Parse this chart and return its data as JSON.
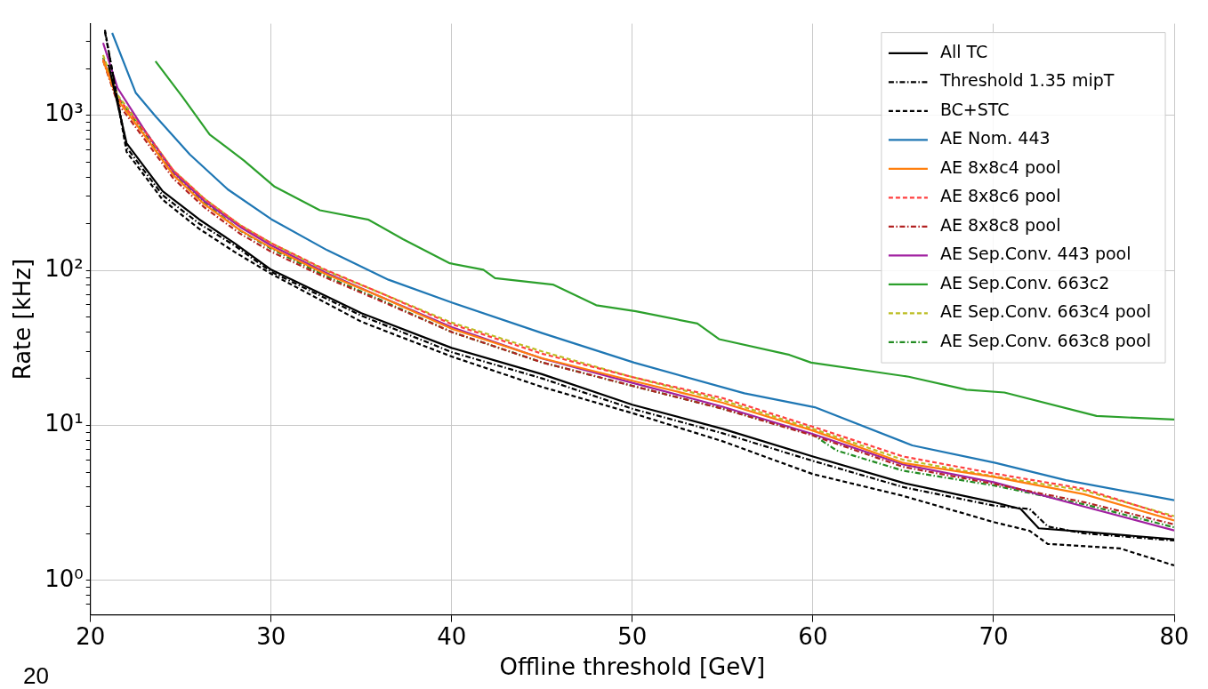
{
  "chart_data": {
    "type": "line",
    "xlabel": "Offline threshold [GeV]",
    "ylabel": "Rate [kHz]",
    "log": "y",
    "grid": true,
    "legend": "top right",
    "xlim": [
      20,
      80
    ],
    "xticks": [
      20,
      30,
      40,
      50,
      60,
      70,
      80
    ],
    "ylim": [
      0.63,
      3900
    ],
    "yticks": [
      {
        "value": 0.7,
        "label": null
      },
      {
        "value": 0.8,
        "label": null
      },
      {
        "value": 0.9,
        "label": null
      },
      {
        "value": 1,
        "label": "10⁰"
      },
      {
        "value": 2,
        "label": null
      },
      {
        "value": 3,
        "label": null
      },
      {
        "value": 4,
        "label": null
      },
      {
        "value": 5,
        "label": null
      },
      {
        "value": 6,
        "label": null
      },
      {
        "value": 7,
        "label": null
      },
      {
        "value": 8,
        "label": null
      },
      {
        "value": 9,
        "label": null
      },
      {
        "value": 10,
        "label": "10¹"
      },
      {
        "value": 20,
        "label": null
      },
      {
        "value": 30,
        "label": null
      },
      {
        "value": 40,
        "label": null
      },
      {
        "value": 50,
        "label": null
      },
      {
        "value": 60,
        "label": null
      },
      {
        "value": 70,
        "label": null
      },
      {
        "value": 80,
        "label": null
      },
      {
        "value": 90,
        "label": null
      },
      {
        "value": 100,
        "label": "10²"
      },
      {
        "value": 200,
        "label": null
      },
      {
        "value": 300,
        "label": null
      },
      {
        "value": 400,
        "label": null
      },
      {
        "value": 500,
        "label": null
      },
      {
        "value": 600,
        "label": null
      },
      {
        "value": 700,
        "label": null
      },
      {
        "value": 800,
        "label": null
      },
      {
        "value": 900,
        "label": null
      },
      {
        "value": 1000,
        "label": "10³"
      },
      {
        "value": 2000,
        "label": null
      },
      {
        "value": 3000,
        "label": null
      }
    ],
    "annotations": [
      "20"
    ],
    "series": [
      {
        "name": "All TC",
        "color": "#000000",
        "line_style": "solid",
        "x": [
          21,
          22,
          24,
          26,
          28,
          30,
          35,
          40,
          45,
          50,
          55,
          60,
          65,
          70,
          71.5,
          72.5,
          75,
          80
        ],
        "values": [
          2118,
          661,
          324,
          214,
          149,
          101,
          53,
          31.6,
          21.4,
          13.6,
          9.5,
          6.3,
          4.26,
          3.2,
          2.89,
          2.17,
          2.06,
          1.84
        ]
      },
      {
        "name": "Threshold 1.35 mipT",
        "color": "#000000",
        "line_style": "dashdot",
        "x": [
          20.8,
          22,
          24,
          26,
          28,
          30,
          35,
          40,
          45,
          50,
          55,
          60,
          65,
          70,
          72,
          73,
          75,
          80
        ],
        "values": [
          3460,
          620,
          305,
          201,
          144,
          98,
          51,
          29.7,
          20.1,
          12.8,
          8.9,
          5.9,
          4.0,
          3.04,
          2.89,
          2.23,
          2.01,
          1.81
        ]
      },
      {
        "name": "BC+STC",
        "color": "#000000",
        "line_style": "dashed",
        "x": [
          20.8,
          22,
          24,
          26,
          28,
          30,
          35,
          40,
          45,
          50,
          55,
          60,
          65,
          70,
          72,
          73,
          77,
          80
        ],
        "values": [
          3554,
          581,
          285,
          186,
          131,
          95,
          46.6,
          27.8,
          17.7,
          12,
          7.9,
          4.85,
          3.51,
          2.38,
          2.09,
          1.72,
          1.61,
          1.25
        ]
      },
      {
        "name": "AE Nom. 443",
        "color": "#1f77b4",
        "line_style": "solid",
        "x": [
          21.2,
          22.5,
          23.6,
          25.5,
          27.6,
          30,
          33.1,
          36.5,
          40,
          45,
          50.1,
          56.2,
          60.1,
          65.5,
          70.1,
          74,
          80
        ],
        "values": [
          3400,
          1400,
          987,
          559,
          333,
          214,
          135,
          87,
          62,
          39.4,
          25.4,
          16.1,
          13.1,
          7.43,
          5.73,
          4.43,
          3.29
        ]
      },
      {
        "name": "AE 8x8c4 pool",
        "color": "#ff7f0e",
        "line_style": "solid",
        "x": [
          20.7,
          21.5,
          23,
          24.6,
          26.3,
          28.3,
          30,
          33,
          36,
          40,
          45,
          50,
          55,
          60,
          65,
          70,
          75,
          80
        ],
        "values": [
          2260,
          1262,
          740,
          410,
          267,
          181,
          140,
          95,
          68,
          42,
          27.1,
          19.4,
          14,
          9.25,
          5.73,
          4.66,
          3.6,
          2.44
        ]
      },
      {
        "name": "AE 8x8c6 pool",
        "color": "#ff4040",
        "line_style": "dashed",
        "x": [
          20.7,
          21.5,
          23,
          24.6,
          26.3,
          28.3,
          30,
          33,
          36,
          40,
          45,
          50,
          55,
          60,
          65,
          70,
          75,
          80
        ],
        "values": [
          2300,
          1300,
          790,
          440,
          290,
          195,
          150,
          101,
          72,
          45,
          29,
          20.5,
          15,
          9.8,
          6.3,
          4.9,
          3.9,
          2.55
        ]
      },
      {
        "name": "AE 8x8c8 pool",
        "color": "#b22222",
        "line_style": "dashdot",
        "x": [
          20.7,
          21.5,
          23,
          24.6,
          26.3,
          28.3,
          30,
          33,
          36,
          40,
          45,
          50,
          55,
          60,
          65,
          70,
          75,
          80
        ],
        "values": [
          2250,
          1200,
          700,
          390,
          255,
          172,
          132,
          90,
          64,
          40,
          25.5,
          18,
          12.8,
          8.6,
          5.4,
          4.2,
          3.2,
          2.3
        ]
      },
      {
        "name": "AE Sep.Conv. 443 pool",
        "color": "#a020a0",
        "line_style": "solid",
        "x": [
          20.7,
          21.5,
          23,
          24.6,
          26.3,
          28.3,
          30,
          33,
          36,
          40,
          45,
          50,
          55,
          60,
          65,
          70,
          75,
          80
        ],
        "values": [
          2930,
          1500,
          800,
          430,
          280,
          190,
          145,
          97,
          68,
          43,
          27,
          18.8,
          13.2,
          8.8,
          5.6,
          4.3,
          3.0,
          2.1
        ]
      },
      {
        "name": "AE Sep.Conv. 663c2",
        "color": "#2ca02c",
        "line_style": "solid",
        "x": [
          23.6,
          25.1,
          26.6,
          28.5,
          30.2,
          32.7,
          35.4,
          37.3,
          39.9,
          41.75,
          42.4,
          45.6,
          48,
          50.2,
          53.6,
          54.8,
          58.7,
          59.9,
          65.3,
          68.5,
          70.6,
          75.7,
          80
        ],
        "values": [
          2230,
          1313,
          752,
          510,
          346,
          244,
          212,
          159,
          111,
          101,
          89,
          81,
          59.6,
          54.5,
          45.4,
          36,
          28.5,
          25.4,
          20.6,
          17,
          16.3,
          11.5,
          10.9
        ]
      },
      {
        "name": "AE Sep.Conv. 663c4 pool",
        "color": "#bcbd22",
        "line_style": "dashed",
        "x": [
          20.7,
          21.5,
          23,
          24.6,
          26.3,
          28.3,
          30,
          33,
          36,
          40,
          45,
          50,
          55,
          60,
          65,
          70,
          75,
          80
        ],
        "values": [
          2450,
          1350,
          800,
          440,
          290,
          195,
          150,
          100,
          72,
          46,
          30,
          20.5,
          14.5,
          9.5,
          6.0,
          4.7,
          3.8,
          2.6
        ]
      },
      {
        "name": "AE Sep.Conv. 663c8 pool",
        "color": "#228b22",
        "line_style": "dashdot",
        "x": [
          20.7,
          21.5,
          23,
          24.6,
          26.3,
          28.3,
          30,
          33,
          36,
          40,
          45,
          50,
          55,
          60,
          61.3,
          65,
          70,
          75,
          80
        ],
        "values": [
          2350,
          1320,
          760,
          420,
          275,
          180,
          138,
          92,
          65,
          40,
          25.5,
          18,
          12.8,
          8.7,
          6.9,
          5.1,
          4.1,
          3.1,
          2.2
        ]
      }
    ]
  }
}
